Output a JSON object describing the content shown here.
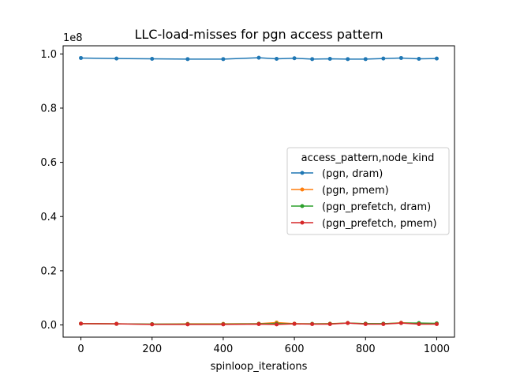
{
  "chart_data": {
    "type": "line",
    "title": "LLC-load-misses for pgn access pattern",
    "xlabel": "spinloop_iterations",
    "ylabel": "",
    "y_offset_label": "1e8",
    "xlim": [
      -50,
      1050
    ],
    "ylim": [
      -0.045,
      1.03
    ],
    "x_ticks": [
      0,
      200,
      400,
      600,
      800,
      1000
    ],
    "y_ticks": [
      0.0,
      0.2,
      0.4,
      0.6,
      0.8,
      1.0
    ],
    "y_tick_labels": [
      "0.0",
      "0.2",
      "0.4",
      "0.6",
      "0.8",
      "1.0"
    ],
    "grid": false,
    "legend": {
      "title": "access_pattern,node_kind",
      "placement": "center-right"
    },
    "x": [
      0,
      100,
      200,
      300,
      400,
      500,
      550,
      600,
      650,
      700,
      750,
      800,
      850,
      900,
      950,
      1000
    ],
    "series": [
      {
        "name": "(pgn, dram)",
        "color": "#1f77b4",
        "values": [
          0.985,
          0.983,
          0.982,
          0.981,
          0.981,
          0.986,
          0.982,
          0.984,
          0.981,
          0.982,
          0.981,
          0.981,
          0.983,
          0.985,
          0.982,
          0.983
        ]
      },
      {
        "name": "(pgn, pmem)",
        "color": "#ff7f0e",
        "values": [
          0.005,
          0.004,
          0.003,
          0.004,
          0.004,
          0.005,
          0.009,
          0.005,
          0.004,
          0.005,
          0.007,
          0.005,
          0.004,
          0.008,
          0.006,
          0.005
        ]
      },
      {
        "name": "(pgn_prefetch, dram)",
        "color": "#2ca02c",
        "values": [
          0.005,
          0.004,
          0.003,
          0.003,
          0.003,
          0.004,
          0.005,
          0.004,
          0.004,
          0.004,
          0.007,
          0.005,
          0.005,
          0.007,
          0.007,
          0.006
        ]
      },
      {
        "name": "(pgn_prefetch, pmem)",
        "color": "#d62728",
        "values": [
          0.005,
          0.004,
          0.002,
          0.002,
          0.002,
          0.003,
          0.002,
          0.004,
          0.003,
          0.003,
          0.007,
          0.003,
          0.003,
          0.007,
          0.003,
          0.003
        ]
      }
    ]
  }
}
